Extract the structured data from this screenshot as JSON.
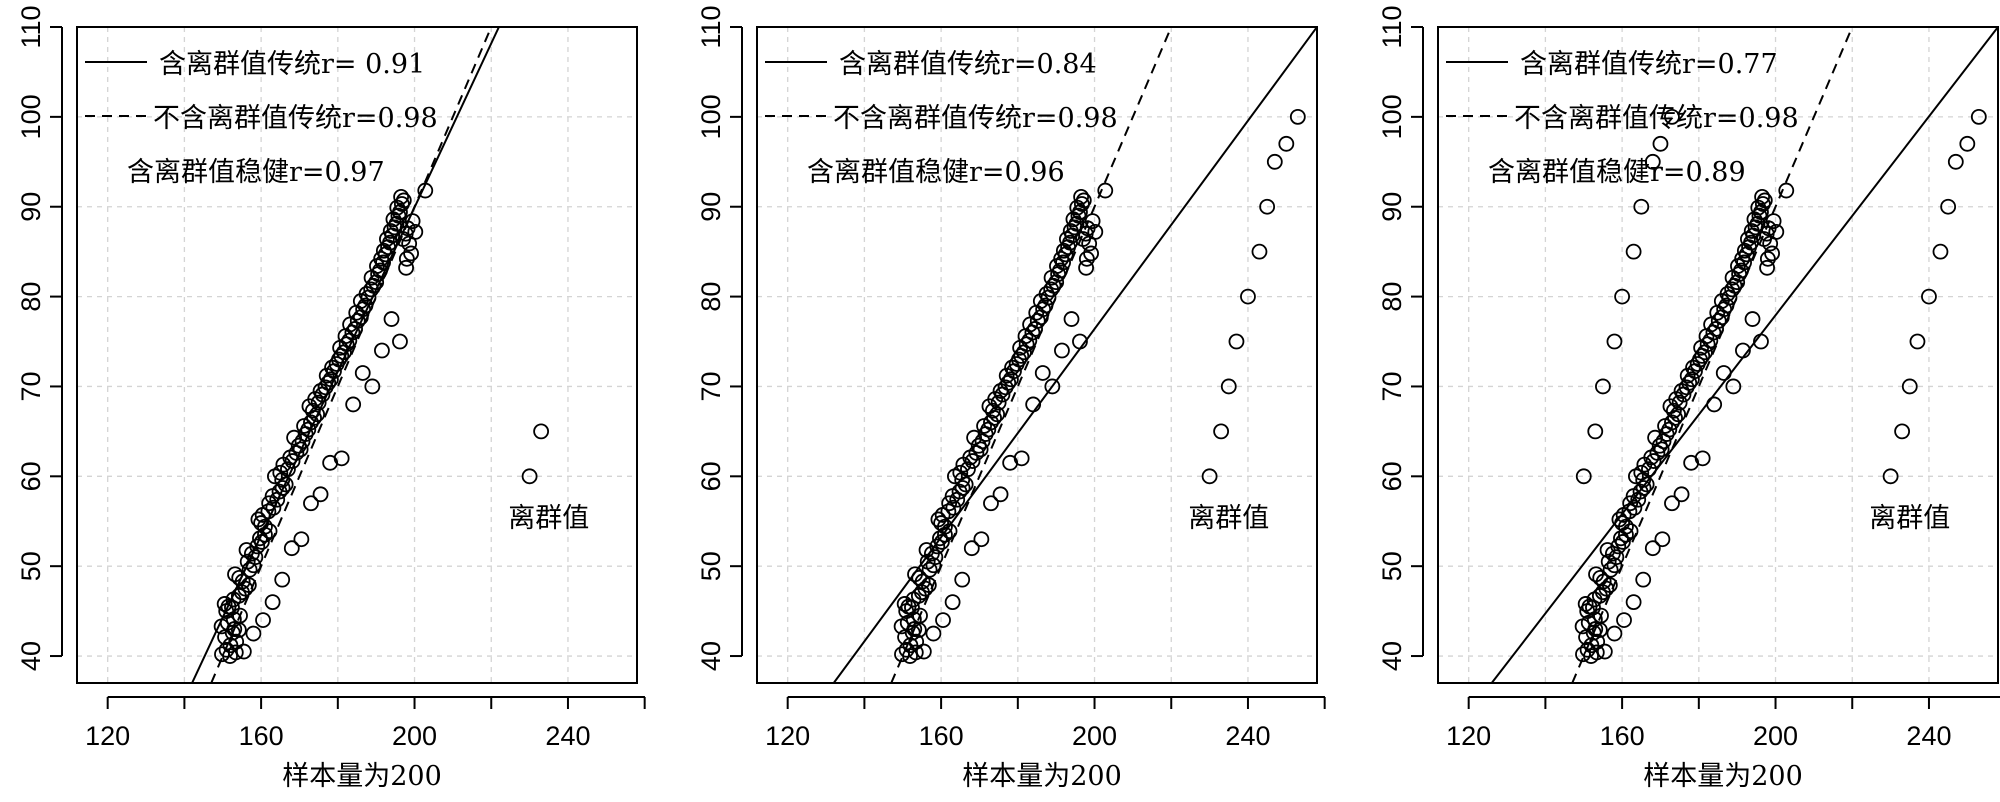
{
  "chart_data": [
    {
      "type": "scatter",
      "xlabel": "样本量为200",
      "ylabel": "",
      "xlim": [
        112,
        258
      ],
      "ylim": [
        37,
        110
      ],
      "xticks": [
        120,
        160,
        200,
        240
      ],
      "yticks": [
        40,
        50,
        60,
        70,
        80,
        90,
        100,
        110
      ],
      "grid": true,
      "legend": [
        {
          "text": "含离群值传统r= 0.91",
          "style": "solid"
        },
        {
          "text": "不含离群值传统r=0.98",
          "style": "dashed"
        },
        {
          "text": "含离群值稳健r=0.97",
          "style": "none"
        }
      ],
      "annotation": {
        "text": "离群值",
        "x": 235,
        "y": 55.5
      },
      "lines": [
        {
          "style": "solid",
          "x": [
            142,
            222
          ],
          "y": [
            37,
            110
          ]
        },
        {
          "style": "dashed",
          "x": [
            147,
            220
          ],
          "y": [
            37,
            110
          ]
        }
      ],
      "outliers": {
        "x": [
          230,
          233
        ],
        "y": [
          60,
          65
        ]
      }
    },
    {
      "type": "scatter",
      "xlabel": "样本量为200",
      "ylabel": "",
      "xlim": [
        112,
        258
      ],
      "ylim": [
        37,
        110
      ],
      "xticks": [
        120,
        160,
        200,
        240
      ],
      "yticks": [
        40,
        50,
        60,
        70,
        80,
        90,
        100,
        110
      ],
      "grid": true,
      "legend": [
        {
          "text": "含离群值传统r=0.84",
          "style": "solid"
        },
        {
          "text": "不含离群值传统r=0.98",
          "style": "dashed"
        },
        {
          "text": "含离群值稳健r=0.96",
          "style": "none"
        }
      ],
      "annotation": {
        "text": "离群值",
        "x": 235,
        "y": 55.5
      },
      "lines": [
        {
          "style": "solid",
          "x": [
            132,
            258
          ],
          "y": [
            37,
            110
          ]
        },
        {
          "style": "dashed",
          "x": [
            147,
            220
          ],
          "y": [
            37,
            110
          ]
        }
      ],
      "outliers": {
        "x": [
          230,
          233,
          235,
          237,
          240,
          243,
          245,
          247,
          250,
          253
        ],
        "y": [
          60,
          65,
          70,
          75,
          80,
          85,
          90,
          95,
          97,
          100
        ]
      }
    },
    {
      "type": "scatter",
      "xlabel": "样本量为200",
      "ylabel": "",
      "xlim": [
        112,
        258
      ],
      "ylim": [
        37,
        110
      ],
      "xticks": [
        120,
        160,
        200,
        240
      ],
      "yticks": [
        40,
        50,
        60,
        70,
        80,
        90,
        100,
        110
      ],
      "grid": true,
      "legend": [
        {
          "text": "含离群值传统r=0.77",
          "style": "solid"
        },
        {
          "text": "不含离群值传统r=0.98",
          "style": "dashed"
        },
        {
          "text": "含离群值稳健r=0.89",
          "style": "none"
        }
      ],
      "annotation": {
        "text": "离群值",
        "x": 235,
        "y": 55.5
      },
      "lines": [
        {
          "style": "solid",
          "x": [
            126,
            258
          ],
          "y": [
            37,
            110
          ]
        },
        {
          "style": "dashed",
          "x": [
            147,
            220
          ],
          "y": [
            37,
            110
          ]
        }
      ],
      "outliers": {
        "x": [
          150,
          153,
          155,
          158,
          160,
          163,
          165,
          168,
          170,
          173,
          230,
          233,
          235,
          237,
          240,
          243,
          245,
          247,
          250,
          253
        ],
        "y": [
          60,
          65,
          70,
          75,
          80,
          85,
          90,
          95,
          97,
          100,
          60,
          65,
          70,
          75,
          80,
          85,
          90,
          95,
          97,
          100
        ]
      }
    }
  ],
  "base_points": {
    "x": [
      149.8,
      151.0,
      152.0,
      153.5,
      150.6,
      152.6,
      154.2,
      149.7,
      151.3,
      152.9,
      154.5,
      151.9,
      153.4,
      150.9,
      152.4,
      150.5,
      152.8,
      154.2,
      155.0,
      155.9,
      156.8,
      155.2,
      154.3,
      153.2,
      157.0,
      158.0,
      156.5,
      158.5,
      157.6,
      156.2,
      159.0,
      160.2,
      159.7,
      161.0,
      162.2,
      161.0,
      160.0,
      159.3,
      160.4,
      161.9,
      163.2,
      162.1,
      164.2,
      163.0,
      164.8,
      165.6,
      166.4,
      165.5,
      163.6,
      165.0,
      167.0,
      165.8,
      168.2,
      167.6,
      169.2,
      170.3,
      169.8,
      170.8,
      168.6,
      171.6,
      172.3,
      171.2,
      173.0,
      173.8,
      174.6,
      173.5,
      172.6,
      175.0,
      174.1,
      176.0,
      175.5,
      176.8,
      177.5,
      178.2,
      177.1,
      179.0,
      178.5,
      179.7,
      180.3,
      180.9,
      181.6,
      180.6,
      182.3,
      183.0,
      182.0,
      183.8,
      184.5,
      183.2,
      185.2,
      186.0,
      184.8,
      186.6,
      187.2,
      186.0,
      188.0,
      187.5,
      188.7,
      189.3,
      190.0,
      188.8,
      190.5,
      191.0,
      190.2,
      191.8,
      191.3,
      192.5,
      192.0,
      193.1,
      193.6,
      192.8,
      194.2,
      193.8,
      194.8,
      195.3,
      194.5,
      195.8,
      196.2,
      195.5,
      196.7,
      197.2,
      196.5,
      197.7,
      198.2,
      197.0,
      198.6,
      199.1,
      198.0,
      199.5,
      200.2,
      197.8,
      202.8,
      196.2,
      194.0,
      191.5,
      189.0,
      186.5,
      184.0,
      181.0,
      178.0,
      175.5,
      173.0,
      170.5,
      168.0,
      165.5,
      163.0,
      160.5,
      158.0,
      155.5,
      153.0,
      151.5
    ],
    "y": [
      40.2,
      40.7,
      41.2,
      41.6,
      42.1,
      42.6,
      42.9,
      43.3,
      43.7,
      44.1,
      44.5,
      40.0,
      40.4,
      45.0,
      45.4,
      45.8,
      46.3,
      46.7,
      47.1,
      47.5,
      47.9,
      48.3,
      48.7,
      49.1,
      49.6,
      50.1,
      50.5,
      51.0,
      51.4,
      51.8,
      52.2,
      52.7,
      53.1,
      53.5,
      53.9,
      54.4,
      54.8,
      55.2,
      55.7,
      56.1,
      56.5,
      57.0,
      57.4,
      57.8,
      58.3,
      58.7,
      59.1,
      59.6,
      60.0,
      60.4,
      60.8,
      61.3,
      61.7,
      62.1,
      62.6,
      63.0,
      63.4,
      63.9,
      64.3,
      64.7,
      65.2,
      65.6,
      66.0,
      66.5,
      66.9,
      67.3,
      67.8,
      68.2,
      68.6,
      69.1,
      69.5,
      69.9,
      70.4,
      70.8,
      71.2,
      71.7,
      72.1,
      72.5,
      73.0,
      73.4,
      73.8,
      74.3,
      74.7,
      75.1,
      75.6,
      76.0,
      76.4,
      76.9,
      77.3,
      77.7,
      78.2,
      78.6,
      79.0,
      79.5,
      79.9,
      80.3,
      80.8,
      81.2,
      81.6,
      82.1,
      82.5,
      82.9,
      83.4,
      83.8,
      84.2,
      84.7,
      85.1,
      85.5,
      86.0,
      86.4,
      86.8,
      87.3,
      87.7,
      88.1,
      88.6,
      89.0,
      89.4,
      89.9,
      90.3,
      90.7,
      91.1,
      87.0,
      87.6,
      86.4,
      85.9,
      84.8,
      84.2,
      88.4,
      87.2,
      83.2,
      91.8,
      75.0,
      77.5,
      74.0,
      70.0,
      71.5,
      68.0,
      62.0,
      61.5,
      58.0,
      57.0,
      53.0,
      52.0,
      48.5,
      46.0,
      44.0,
      42.5,
      40.5,
      43.0,
      45.5
    ]
  }
}
